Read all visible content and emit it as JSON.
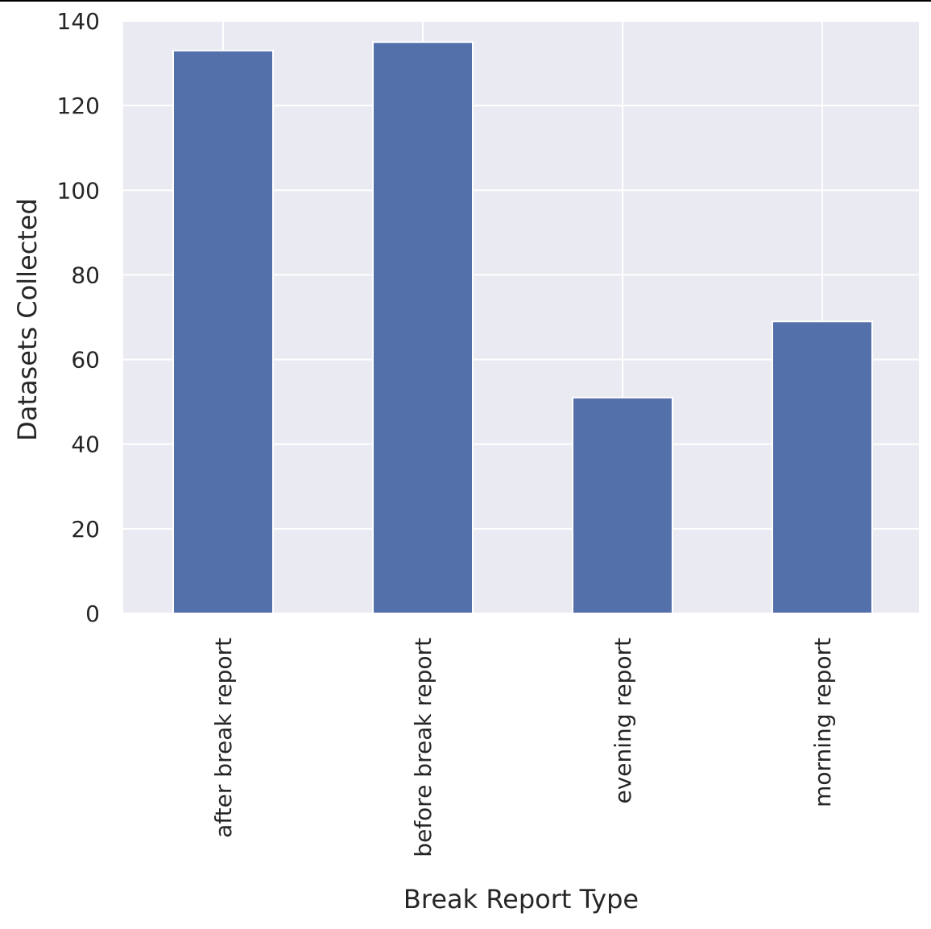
{
  "chart_data": {
    "type": "bar",
    "categories": [
      "after break report",
      "before break report",
      "evening report",
      "morning report"
    ],
    "values": [
      133,
      135,
      51,
      69
    ],
    "title": "",
    "xlabel": "Break Report Type",
    "ylabel": "Datasets Collected",
    "ylim": [
      0,
      140
    ],
    "yticks": [
      0,
      20,
      40,
      60,
      80,
      100,
      120,
      140
    ],
    "grid": true,
    "colors": {
      "bar": "#5470aa",
      "plot_background": "#eaeaf2",
      "grid": "#ffffff"
    }
  }
}
